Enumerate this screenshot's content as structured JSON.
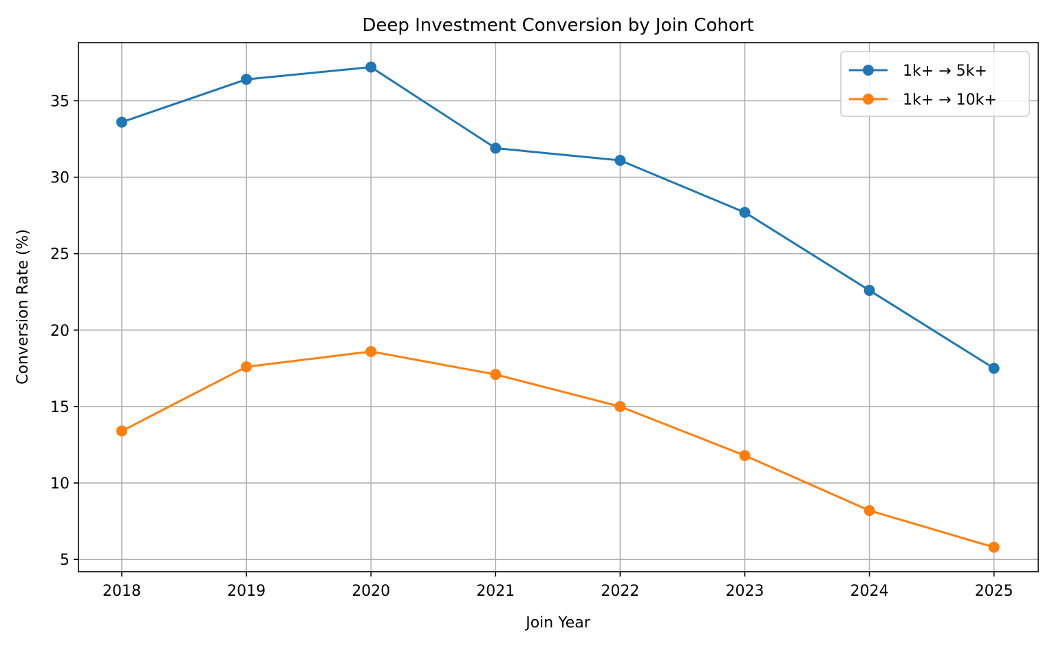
{
  "chart_data": {
    "type": "line",
    "title": "Deep Investment Conversion by Join Cohort",
    "xlabel": "Join Year",
    "ylabel": "Conversion Rate (%)",
    "x": [
      "2018",
      "2019",
      "2020",
      "2021",
      "2022",
      "2023",
      "2024",
      "2025"
    ],
    "ylim": [
      4.2,
      38.8
    ],
    "yticks": [
      "5",
      "10",
      "15",
      "20",
      "25",
      "30",
      "35"
    ],
    "grid": true,
    "legend_position": "top-right",
    "series": [
      {
        "name": "1k+ → 5k+",
        "color": "#1f77b4",
        "marker": "circle",
        "values": [
          33.6,
          36.4,
          37.2,
          31.9,
          31.1,
          27.7,
          22.6,
          17.5
        ]
      },
      {
        "name": "1k+ → 10k+",
        "color": "#ff7f0e",
        "marker": "circle",
        "values": [
          13.4,
          17.6,
          18.6,
          17.1,
          15.0,
          11.8,
          8.2,
          5.8
        ]
      }
    ]
  }
}
